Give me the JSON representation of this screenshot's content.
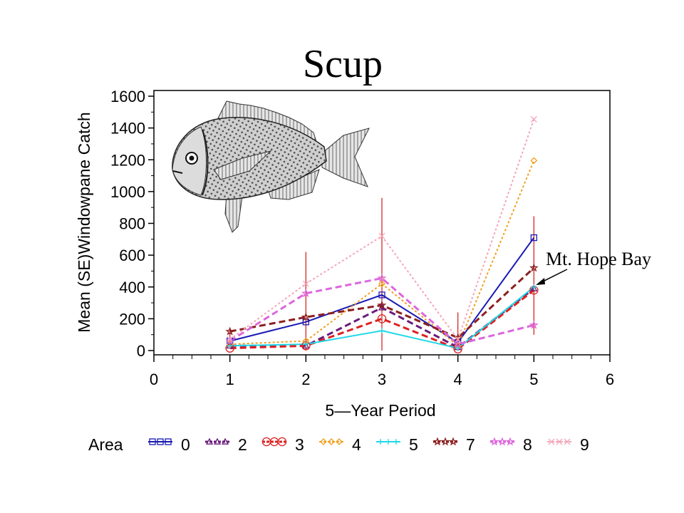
{
  "chart_data": {
    "type": "line",
    "title": "Scup",
    "xlabel": "5—Year  Period",
    "ylabel": "Mean  (SE)Windowpane  Catch",
    "xlim": [
      0,
      6
    ],
    "ylim": [
      0,
      1600
    ],
    "x_ticks": [
      "0",
      "1",
      "2",
      "3",
      "4",
      "5",
      "6"
    ],
    "y_ticks": [
      "0",
      "200",
      "400",
      "600",
      "800",
      "1000",
      "1200",
      "1400",
      "1600"
    ],
    "x": [
      1,
      2,
      3,
      4,
      5
    ],
    "legend_title": "Area",
    "legend_position": "bottom",
    "annotation": "Mt. Hope Bay",
    "series": [
      {
        "name": "0",
        "values": [
          60,
          180,
          350,
          50,
          710
        ],
        "color": "#1a1ab4",
        "marker": "square",
        "dash": "solid"
      },
      {
        "name": "2",
        "values": [
          30,
          30,
          270,
          20,
          390
        ],
        "color": "#6a1b7a",
        "marker": "triangle",
        "dash": "dashed"
      },
      {
        "name": "3",
        "values": [
          15,
          30,
          200,
          10,
          380
        ],
        "color": "#dd2020",
        "marker": "circle",
        "dash": "dashed"
      },
      {
        "name": "4",
        "values": [
          40,
          60,
          420,
          30,
          1195
        ],
        "color": "#f0a020",
        "marker": "diamond",
        "dash": "dotted"
      },
      {
        "name": "5",
        "values": [
          30,
          40,
          125,
          15,
          400
        ],
        "color": "#20d8e8",
        "marker": "plus",
        "dash": "solid"
      },
      {
        "name": "7",
        "values": [
          120,
          210,
          285,
          80,
          520
        ],
        "color": "#8b2020",
        "marker": "star",
        "dash": "dashed"
      },
      {
        "name": "8",
        "values": [
          60,
          360,
          455,
          40,
          160
        ],
        "color": "#dd66dd",
        "marker": "star",
        "dash": "dashed"
      },
      {
        "name": "9",
        "values": [
          70,
          420,
          720,
          70,
          1455
        ],
        "color": "#f4a6b8",
        "marker": "cross",
        "dash": "dotted"
      }
    ],
    "error_bars": [
      {
        "x": 1,
        "low": 20,
        "high": 140
      },
      {
        "x": 2,
        "low": 0,
        "high": 620
      },
      {
        "x": 3,
        "low": 0,
        "high": 960
      },
      {
        "x": 4,
        "low": 0,
        "high": 240
      },
      {
        "x": 5,
        "low": 100,
        "high": 845
      }
    ],
    "error_bar_color": "#d01818"
  },
  "image": {
    "subject": "scup-fish-illustration"
  }
}
